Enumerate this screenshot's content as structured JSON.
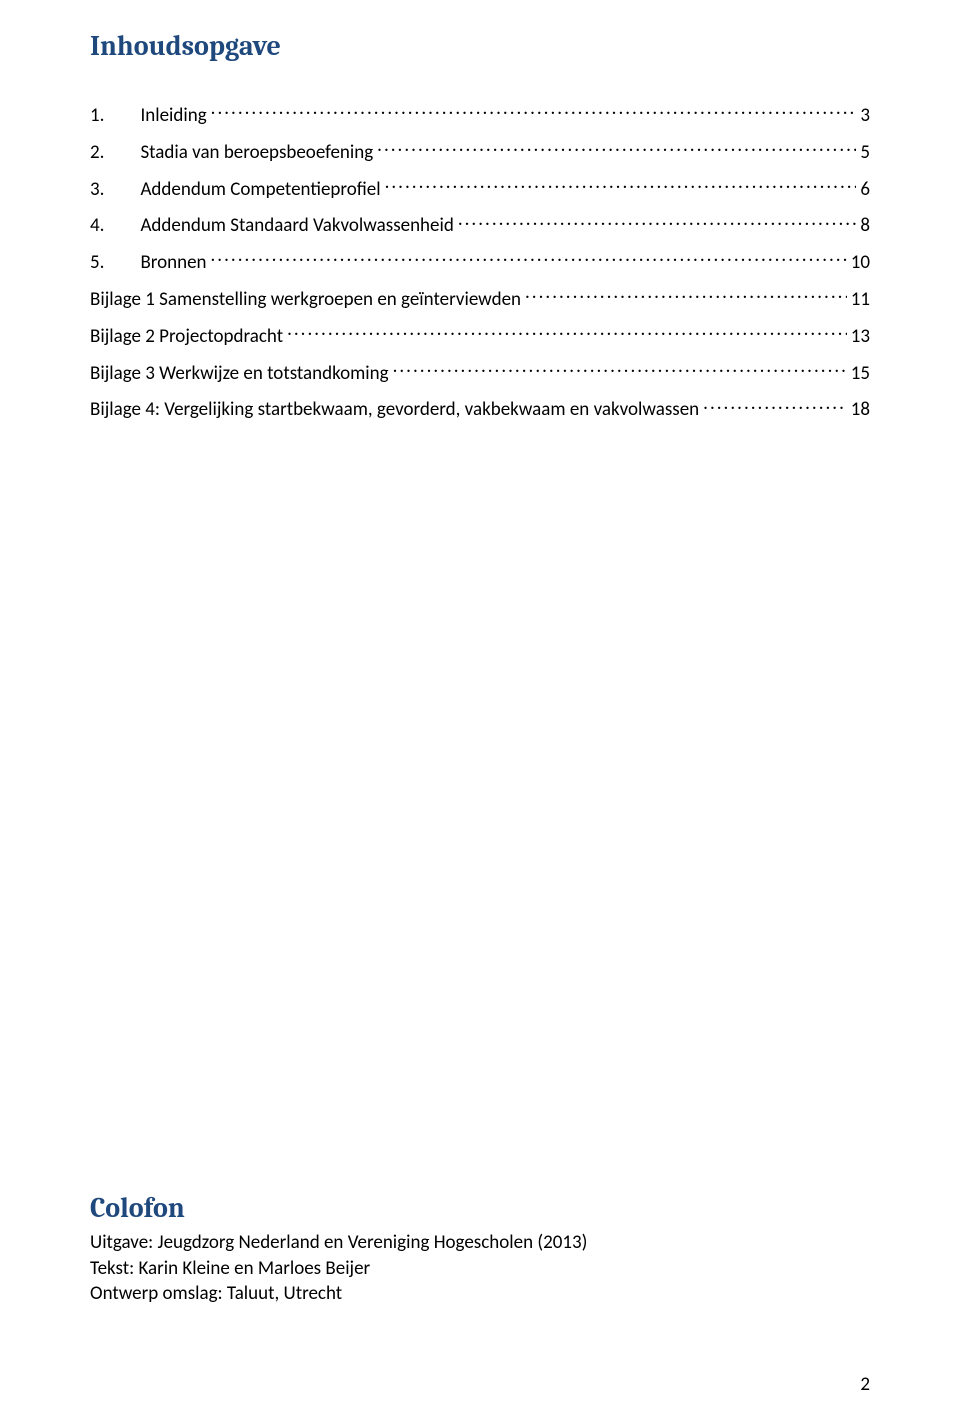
{
  "colors": {
    "heading": "#1f497d",
    "text": "#000000",
    "background": "#ffffff"
  },
  "typography": {
    "heading_font": "Cambria",
    "body_font": "Calibri",
    "heading_size_pt": 20,
    "body_size_pt": 14
  },
  "headings": {
    "toc": "Inhoudsopgave",
    "colofon": "Colofon"
  },
  "toc": {
    "entries": [
      {
        "num": "1.",
        "title": "Inleiding",
        "page": "3",
        "indent": true
      },
      {
        "num": "2.",
        "title": "Stadia van beroepsbeoefening",
        "page": "5",
        "indent": true
      },
      {
        "num": "3.",
        "title": "Addendum Competentieprofiel",
        "page": "6",
        "indent": true
      },
      {
        "num": "4.",
        "title": "Addendum Standaard Vakvolwassenheid",
        "page": "8",
        "indent": true
      },
      {
        "num": "5.",
        "title": "Bronnen",
        "page": "10",
        "indent": true
      },
      {
        "num": "",
        "title": "Bijlage 1  Samenstelling werkgroepen en geïnterviewden",
        "page": "11",
        "indent": false
      },
      {
        "num": "",
        "title": "Bijlage 2 Projectopdracht",
        "page": "13",
        "indent": false
      },
      {
        "num": "",
        "title": "Bijlage 3 Werkwijze en totstandkoming",
        "page": "15",
        "indent": false
      },
      {
        "num": "",
        "title": "Bijlage 4: Vergelijking startbekwaam, gevorderd, vakbekwaam en vakvolwassen",
        "page": "18",
        "indent": false
      }
    ]
  },
  "colofon": {
    "lines": [
      "Uitgave: Jeugdzorg Nederland en Vereniging Hogescholen (2013)",
      "Tekst: Karin Kleine en Marloes Beijer",
      "Ontwerp omslag: Taluut, Utrecht"
    ]
  },
  "page_number": "2"
}
